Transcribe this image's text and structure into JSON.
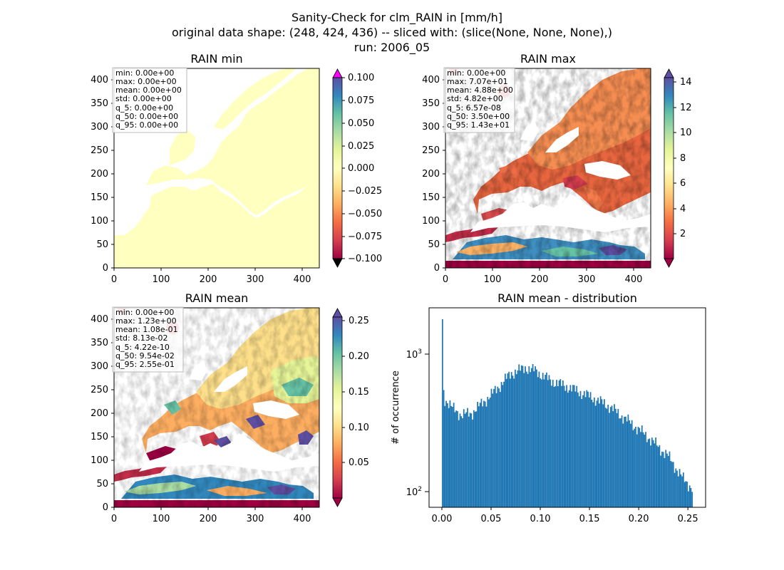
{
  "figure": {
    "title_lines": [
      "Sanity-Check for clm_RAIN in [mm/h]",
      "original data shape: (248, 424, 436) -- sliced with: (slice(None, None, None),)",
      "run: 2006_05"
    ]
  },
  "colors": {
    "hist_bar": "#1f77b4",
    "land_min": "#ffffbf",
    "over_extend": "#ff00ff",
    "under_extend": "#000000",
    "spectral": [
      "#9e0142",
      "#d53e4f",
      "#f46d43",
      "#fdae61",
      "#fee08b",
      "#ffffbf",
      "#e6f598",
      "#abdda4",
      "#66c2a5",
      "#3288bd",
      "#5e4fa2"
    ]
  },
  "icons": [
    "colorbar-min-extend-triangle",
    "colorbar-max-extend-triangle"
  ],
  "chart_data": [
    {
      "type": "heatmap",
      "title": "RAIN min",
      "x_ticks": [
        "0",
        "100",
        "200",
        "300",
        "400"
      ],
      "y_ticks": [
        "0",
        "50",
        "100",
        "150",
        "200",
        "250",
        "300",
        "350",
        "400"
      ],
      "xlim": [
        0,
        436
      ],
      "ylim": [
        0,
        424
      ],
      "colorbar": {
        "ticks": [
          "0.100",
          "0.075",
          "0.050",
          "0.025",
          "0.000",
          "−0.025",
          "−0.050",
          "−0.075",
          "−0.100"
        ],
        "range": [
          -0.1,
          0.1
        ],
        "extend": "both",
        "colormap": "Spectral"
      },
      "stats": [
        "min: 0.00e+00",
        "max: 0.00e+00",
        "mean: 0.00e+00",
        "std: 0.00e+00",
        "q_5: 0.00e+00",
        "q_50: 0.00e+00",
        "q_95: 0.00e+00"
      ],
      "field": "uniform value 0.00 over land (Europe domain)"
    },
    {
      "type": "heatmap",
      "title": "RAIN max",
      "x_ticks": [
        "0",
        "100",
        "200",
        "300",
        "400"
      ],
      "y_ticks": [
        "0",
        "50",
        "100",
        "150",
        "200",
        "250",
        "300",
        "350",
        "400"
      ],
      "xlim": [
        0,
        436
      ],
      "ylim": [
        0,
        424
      ],
      "colorbar": {
        "ticks": [
          "14",
          "12",
          "10",
          "8",
          "6",
          "4",
          "2"
        ],
        "range": [
          0,
          15
        ],
        "extend": "both",
        "colormap": "Spectral"
      },
      "stats": [
        "min: 0.00e+00",
        "max: 7.07e+01",
        "mean: 4.88e+00",
        "std: 4.82e+00",
        "q_5: 6.57e-08",
        "q_50: 3.50e+00",
        "q_95: 1.43e+01"
      ]
    },
    {
      "type": "heatmap",
      "title": "RAIN mean",
      "x_ticks": [
        "0",
        "100",
        "200",
        "300",
        "400"
      ],
      "y_ticks": [
        "0",
        "50",
        "100",
        "150",
        "200",
        "250",
        "300",
        "350",
        "400"
      ],
      "xlim": [
        0,
        436
      ],
      "ylim": [
        0,
        424
      ],
      "colorbar": {
        "ticks": [
          "0.25",
          "0.20",
          "0.15",
          "0.10",
          "0.05"
        ],
        "range": [
          0.0,
          0.26
        ],
        "extend": "both",
        "colormap": "Spectral"
      },
      "stats": [
        "min: 0.00e+00",
        "max: 1.23e+00",
        "mean: 1.08e-01",
        "std: 8.13e-02",
        "q_5: 4.22e-10",
        "q_50: 9.54e-02",
        "q_95: 2.55e-01"
      ]
    },
    {
      "type": "bar",
      "title": "RAIN mean - distribution",
      "ylabel": "# of occurrence",
      "y_scale": "log",
      "xlim": [
        -0.013,
        0.268
      ],
      "ylim": [
        80,
        2300
      ],
      "x_ticks": [
        "0.00",
        "0.05",
        "0.10",
        "0.15",
        "0.20",
        "0.25"
      ],
      "y_ticks": [
        {
          "base": "10",
          "exp": "3"
        },
        {
          "base": "10",
          "exp": "2"
        }
      ],
      "bins": {
        "start": 0.0,
        "end": 0.255,
        "count": 200
      },
      "anchors": {
        "x": [
          0.0,
          0.001,
          0.003,
          0.01,
          0.02,
          0.03,
          0.05,
          0.07,
          0.085,
          0.095,
          0.11,
          0.13,
          0.15,
          0.17,
          0.19,
          0.21,
          0.23,
          0.245,
          0.255
        ],
        "y": [
          1900,
          620,
          500,
          430,
          380,
          390,
          530,
          760,
          840,
          800,
          680,
          600,
          520,
          440,
          340,
          260,
          190,
          130,
          110
        ]
      }
    }
  ]
}
